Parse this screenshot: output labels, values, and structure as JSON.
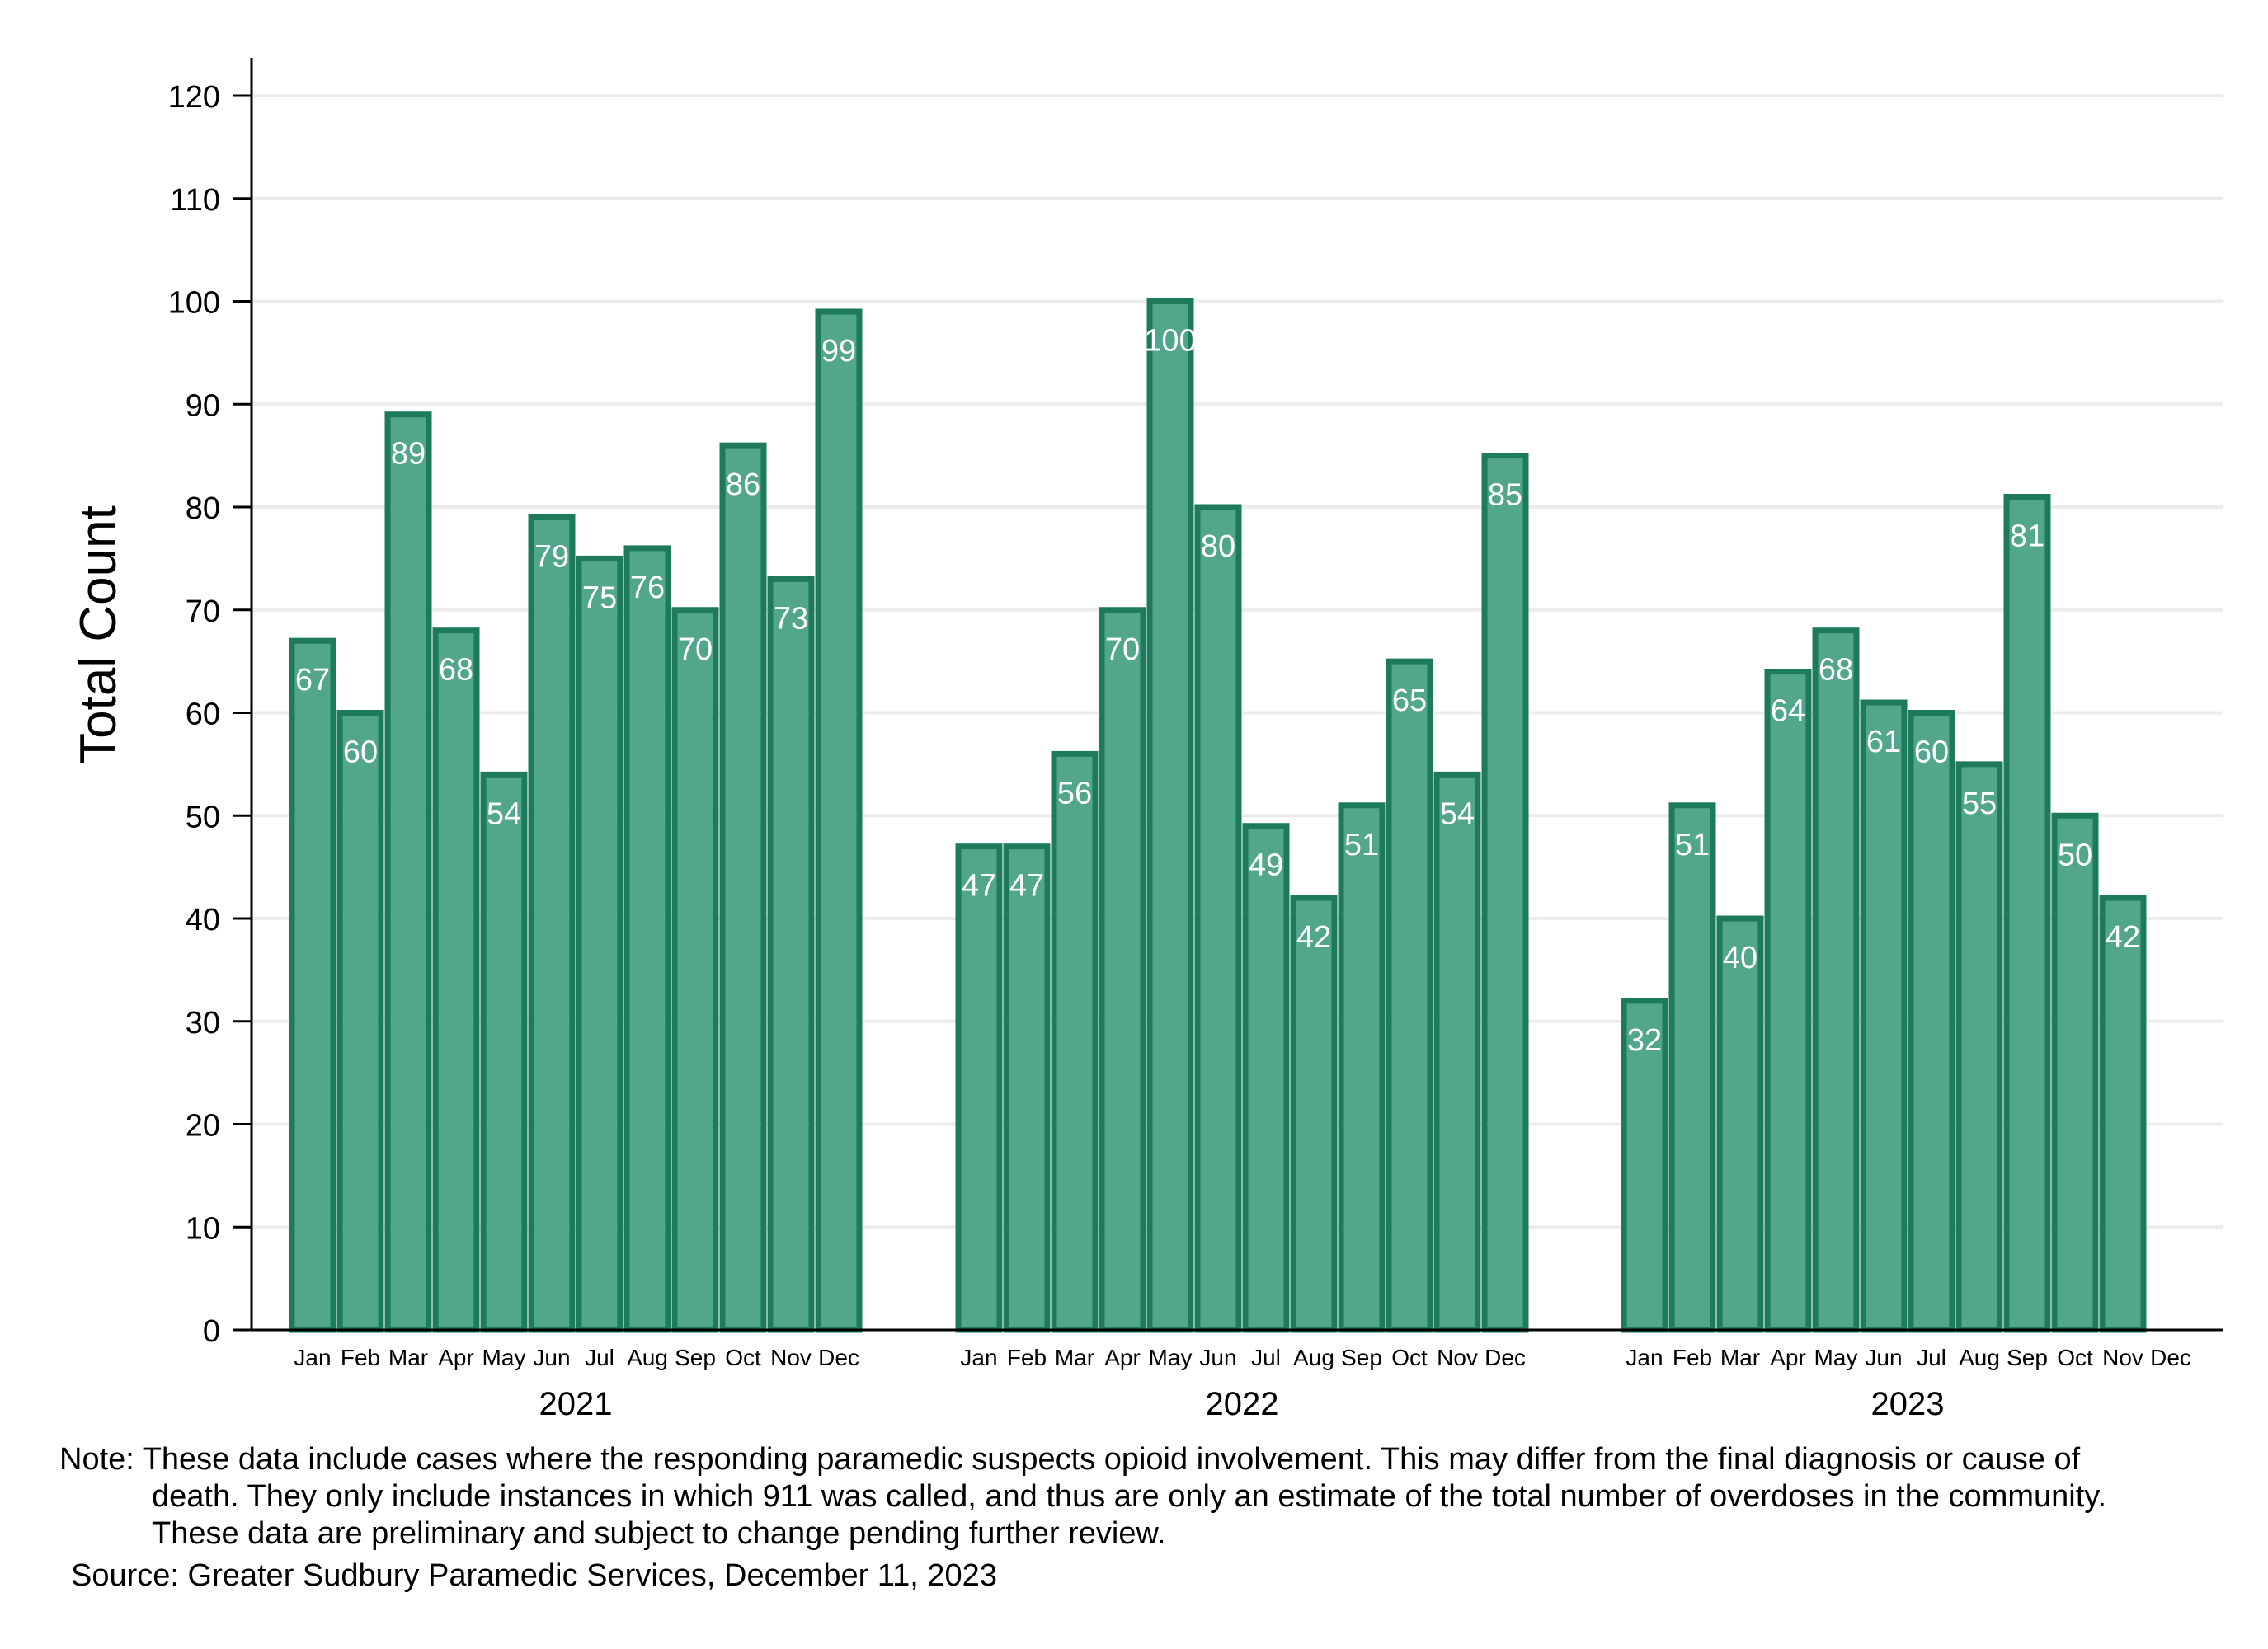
{
  "chart_data": {
    "type": "bar",
    "ylabel": "Total Count",
    "ylim": [
      0,
      120
    ],
    "yticks": [
      0,
      10,
      20,
      30,
      40,
      50,
      60,
      70,
      80,
      90,
      100,
      110,
      120
    ],
    "grid": true,
    "months": [
      "Jan",
      "Feb",
      "Mar",
      "Apr",
      "May",
      "Jun",
      "Jul",
      "Aug",
      "Sep",
      "Oct",
      "Nov",
      "Dec"
    ],
    "groups": [
      {
        "year": "2021",
        "values": [
          67,
          60,
          89,
          68,
          54,
          79,
          75,
          76,
          70,
          86,
          73,
          99
        ]
      },
      {
        "year": "2022",
        "values": [
          47,
          47,
          56,
          70,
          100,
          80,
          49,
          42,
          51,
          65,
          54,
          85
        ]
      },
      {
        "year": "2023",
        "values": [
          32,
          51,
          40,
          64,
          68,
          61,
          60,
          55,
          81,
          50,
          42,
          null
        ]
      }
    ],
    "colors": {
      "bar_fill": "#52a68c",
      "bar_stroke": "#1e7a5c",
      "grid": "#ececec",
      "axis": "#000000",
      "label": "#ffffff"
    }
  },
  "notes": {
    "note_line1": "Note: These data include cases where the responding paramedic suspects opioid involvement. This may differ from the final diagnosis or cause of",
    "note_line2": "death. They only include instances in which 911 was called, and thus are only an estimate of the total number of overdoses in the community.",
    "note_line3": "These data are preliminary and subject to change pending further review.",
    "source": "Source: Greater Sudbury Paramedic Services, December 11, 2023"
  }
}
